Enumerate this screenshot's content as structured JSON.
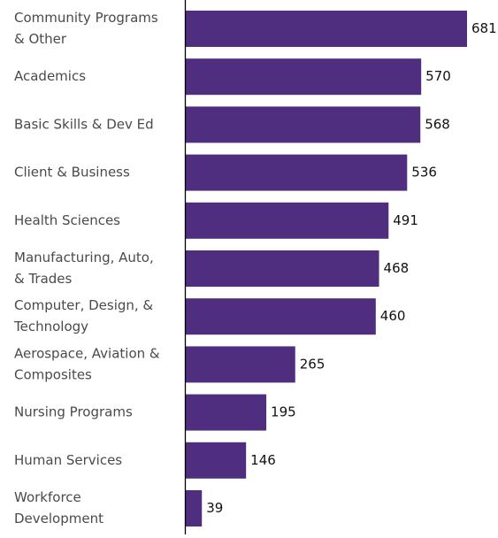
{
  "chart_data": {
    "type": "bar",
    "orientation": "horizontal",
    "categories": [
      [
        "Community Programs",
        "& Other"
      ],
      [
        "Academics"
      ],
      [
        "Basic Skills & Dev Ed"
      ],
      [
        "Client & Business"
      ],
      [
        "Health Sciences"
      ],
      [
        "Manufacturing, Auto,",
        "& Trades"
      ],
      [
        "Computer, Design, &",
        "Technology"
      ],
      [
        "Aerospace, Aviation &",
        "Composites"
      ],
      [
        "Nursing Programs"
      ],
      [
        "Human Services"
      ],
      [
        "Workforce",
        "Development"
      ]
    ],
    "values": [
      681,
      570,
      568,
      536,
      491,
      468,
      460,
      265,
      195,
      146,
      39
    ],
    "data_labels": [
      "681",
      "570",
      "568",
      "536",
      "491",
      "468",
      "460",
      "265",
      "195",
      "146",
      "39"
    ],
    "xlim": [
      0,
      681
    ],
    "grid": false,
    "legend": "none",
    "colors": {
      "bar": "#4f2d7f",
      "axis": "#000000",
      "category_text": "#4a4a4a",
      "value_text": "#111111"
    }
  }
}
